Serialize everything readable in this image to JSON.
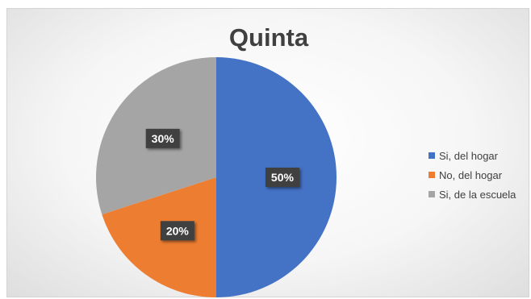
{
  "chart_data": {
    "type": "pie",
    "title": "Quinta",
    "categories": [
      "Si, del hogar",
      "No, del hogar",
      "Si, de la escuela"
    ],
    "values": [
      50,
      20,
      30
    ],
    "labels": [
      "50%",
      "20%",
      "30%"
    ],
    "colors": [
      "#4472C4",
      "#ED7D31",
      "#A5A5A5"
    ],
    "start_angle_deg": 0,
    "direction": "clockwise",
    "legend_position": "right"
  }
}
